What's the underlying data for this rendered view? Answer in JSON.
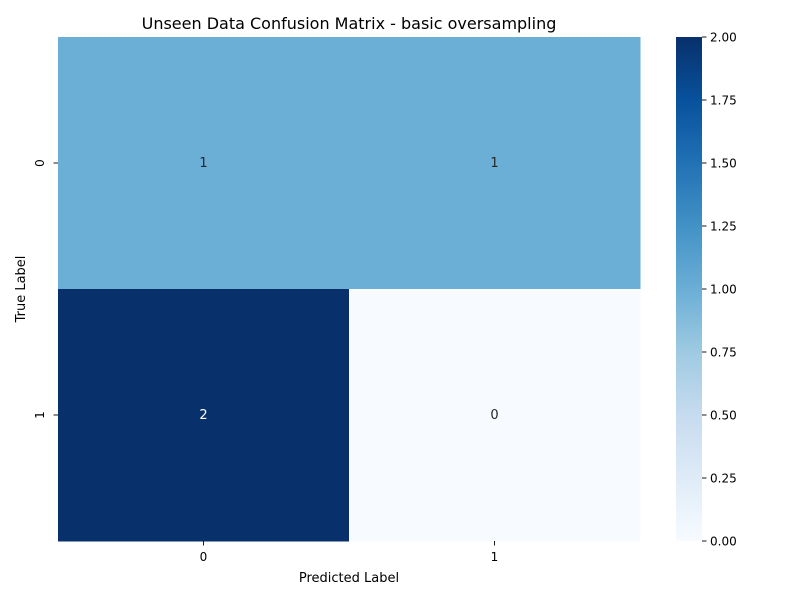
{
  "chart_data": {
    "type": "heatmap",
    "title": "Unseen Data Confusion Matrix - basic oversampling",
    "xlabel": "Predicted Label",
    "ylabel": "True Label",
    "x_categories": [
      "0",
      "1"
    ],
    "y_categories": [
      "0",
      "1"
    ],
    "values": [
      [
        1,
        1
      ],
      [
        2,
        0
      ]
    ],
    "annotations": true,
    "colormap": "Blues",
    "colorbar": {
      "vmin": 0.0,
      "vmax": 2.0,
      "ticks": [
        "0.00",
        "0.25",
        "0.50",
        "0.75",
        "1.00",
        "1.25",
        "1.50",
        "1.75",
        "2.00"
      ]
    },
    "grid": false,
    "legend": "none"
  }
}
